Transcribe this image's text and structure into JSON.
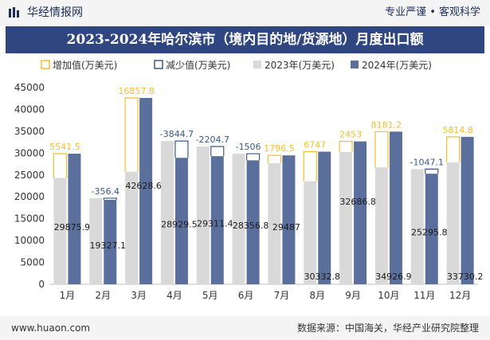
{
  "header": {
    "brand": "华经情报网",
    "tagline": "专业严谨 • 客观科学"
  },
  "footer": {
    "url": "www.huaon.com",
    "source": "数据来源：中国海关，华经产业研究院整理"
  },
  "colors": {
    "bar2023": "#d9d9d9",
    "bar2024": "#5b6f9c",
    "increase": "#f3bf2b",
    "decrease": "#3a5a8c",
    "headerBlue": "#2f4681"
  },
  "chart_data": {
    "type": "bar",
    "title": "2023-2024年哈尔滨市（境内目的地/货源地）月度出口额",
    "categories": [
      "1月",
      "2月",
      "3月",
      "4月",
      "5月",
      "6月",
      "7月",
      "8月",
      "9月",
      "10月",
      "11月",
      "12月"
    ],
    "series": [
      {
        "name": "2023年(万美元)",
        "values": [
          24334.4,
          19683.5,
          25770.8,
          32774.2,
          31516.1,
          29862.8,
          27690.5,
          23585.8,
          30233.8,
          26745.7,
          26343.0,
          27915.4
        ]
      },
      {
        "name": "2024年(万美元)",
        "values": [
          29875.9,
          19327.1,
          42628.6,
          28929.5,
          29311.4,
          28356.8,
          29487,
          30332.8,
          32686.8,
          34926.9,
          25295.8,
          33730.2
        ]
      }
    ],
    "value_labels_2024": [
      "29875.9",
      "19327.1",
      "42628.6",
      "28929.5",
      "29311.4",
      "28356.8",
      "29487",
      "30332.8",
      "32686.8",
      "34926.9",
      "25295.8",
      "33730.2"
    ],
    "changes": [
      {
        "name": "增加值(万美元)",
        "type": "increase"
      },
      {
        "name": "减少值(万美元)",
        "type": "decrease"
      }
    ],
    "change_labels": [
      "5541.5",
      "-356.4",
      "16857.8",
      "-3844.7",
      "-2204.7",
      "-1506",
      "1796.5",
      "6747",
      "2453",
      "8181.2",
      "-1047.1",
      "5814.8"
    ],
    "change_values": [
      5541.5,
      -356.4,
      16857.8,
      -3844.7,
      -2204.7,
      -1506,
      1796.5,
      6747,
      2453,
      8181.2,
      -1047.1,
      5814.8
    ],
    "y_ticks": [
      "0",
      "5000",
      "10000",
      "15000",
      "20000",
      "25000",
      "30000",
      "35000",
      "40000",
      "45000"
    ],
    "ylim": [
      0,
      45000
    ],
    "legend": [
      "增加值(万美元)",
      "减少值(万美元)",
      "2023年(万美元)",
      "2024年(万美元)"
    ],
    "legend_position": "top",
    "grid": false
  }
}
